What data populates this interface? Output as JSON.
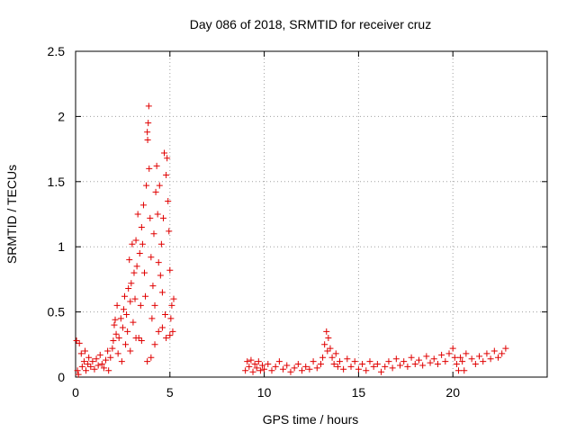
{
  "chart_data": {
    "type": "scatter",
    "title": "Day 086 of 2018, SRMTID for receiver cruz",
    "xlabel": "GPS time / hours",
    "ylabel": "SRMTID / TECUs",
    "xlim": [
      0,
      25
    ],
    "ylim": [
      0,
      2.5
    ],
    "xticks": [
      0,
      5,
      10,
      15,
      20
    ],
    "xtick_labels": [
      "0",
      "5",
      "10",
      "15",
      "20"
    ],
    "yticks": [
      0,
      0.5,
      1,
      1.5,
      2,
      2.5
    ],
    "ytick_labels": [
      "0",
      "0.5",
      "1",
      "1.5",
      "2",
      "2.5"
    ],
    "grid": true,
    "marker": "plus",
    "series": [
      {
        "name": "SRMTID",
        "color": "#e00000",
        "points": [
          [
            0.05,
            0.28
          ],
          [
            0.1,
            0.05
          ],
          [
            0.15,
            0.02
          ],
          [
            0.2,
            0.26
          ],
          [
            0.3,
            0.18
          ],
          [
            0.35,
            0.08
          ],
          [
            0.45,
            0.12
          ],
          [
            0.5,
            0.2
          ],
          [
            0.55,
            0.05
          ],
          [
            0.65,
            0.1
          ],
          [
            0.7,
            0.15
          ],
          [
            0.8,
            0.08
          ],
          [
            0.9,
            0.12
          ],
          [
            1.0,
            0.06
          ],
          [
            1.1,
            0.14
          ],
          [
            1.2,
            0.09
          ],
          [
            1.3,
            0.17
          ],
          [
            1.4,
            0.1
          ],
          [
            1.5,
            0.07
          ],
          [
            1.6,
            0.13
          ],
          [
            1.7,
            0.2
          ],
          [
            1.75,
            0.05
          ],
          [
            1.85,
            0.15
          ],
          [
            1.95,
            0.22
          ],
          [
            2.0,
            0.28
          ],
          [
            2.05,
            0.4
          ],
          [
            2.1,
            0.44
          ],
          [
            2.15,
            0.33
          ],
          [
            2.2,
            0.55
          ],
          [
            2.25,
            0.18
          ],
          [
            2.3,
            0.3
          ],
          [
            2.4,
            0.45
          ],
          [
            2.45,
            0.12
          ],
          [
            2.5,
            0.38
          ],
          [
            2.55,
            0.52
          ],
          [
            2.6,
            0.62
          ],
          [
            2.65,
            0.25
          ],
          [
            2.7,
            0.48
          ],
          [
            2.75,
            0.35
          ],
          [
            2.8,
            0.68
          ],
          [
            2.85,
            0.9
          ],
          [
            2.9,
            0.58
          ],
          [
            2.95,
            0.72
          ],
          [
            3.0,
            1.02
          ],
          [
            3.05,
            0.42
          ],
          [
            3.1,
            0.8
          ],
          [
            3.15,
            0.6
          ],
          [
            3.2,
            1.05
          ],
          [
            3.25,
            0.85
          ],
          [
            3.3,
            1.25
          ],
          [
            3.35,
            0.3
          ],
          [
            3.4,
            0.95
          ],
          [
            3.45,
            0.55
          ],
          [
            3.5,
            1.15
          ],
          [
            3.55,
            1.02
          ],
          [
            3.6,
            1.32
          ],
          [
            3.65,
            0.8
          ],
          [
            3.7,
            0.62
          ],
          [
            3.75,
            1.47
          ],
          [
            3.8,
            1.88
          ],
          [
            3.82,
            1.82
          ],
          [
            3.85,
            1.95
          ],
          [
            3.88,
            2.08
          ],
          [
            3.9,
            1.6
          ],
          [
            3.95,
            1.22
          ],
          [
            4.0,
            0.92
          ],
          [
            4.05,
            0.45
          ],
          [
            4.1,
            0.7
          ],
          [
            4.15,
            1.1
          ],
          [
            4.2,
            0.55
          ],
          [
            4.25,
            1.42
          ],
          [
            4.3,
            1.62
          ],
          [
            4.35,
            1.25
          ],
          [
            4.4,
            0.88
          ],
          [
            4.45,
            1.47
          ],
          [
            4.5,
            0.78
          ],
          [
            4.55,
            1.02
          ],
          [
            4.6,
            0.65
          ],
          [
            4.65,
            1.22
          ],
          [
            4.7,
            1.72
          ],
          [
            4.75,
            0.48
          ],
          [
            4.8,
            1.55
          ],
          [
            4.85,
            1.68
          ],
          [
            4.9,
            1.35
          ],
          [
            4.95,
            1.12
          ],
          [
            5.0,
            0.82
          ],
          [
            5.05,
            0.45
          ],
          [
            5.1,
            0.55
          ],
          [
            5.15,
            0.35
          ],
          [
            5.2,
            0.6
          ],
          [
            3.2,
            0.3
          ],
          [
            3.5,
            0.28
          ],
          [
            3.8,
            0.12
          ],
          [
            4.0,
            0.15
          ],
          [
            4.2,
            0.25
          ],
          [
            4.4,
            0.35
          ],
          [
            4.6,
            0.38
          ],
          [
            4.8,
            0.3
          ],
          [
            5.0,
            0.32
          ],
          [
            2.9,
            0.2
          ],
          [
            9.0,
            0.05
          ],
          [
            9.1,
            0.12
          ],
          [
            9.2,
            0.08
          ],
          [
            9.3,
            0.13
          ],
          [
            9.4,
            0.04
          ],
          [
            9.5,
            0.1
          ],
          [
            9.6,
            0.07
          ],
          [
            9.7,
            0.12
          ],
          [
            9.8,
            0.05
          ],
          [
            9.9,
            0.09
          ],
          [
            10.0,
            0.06
          ],
          [
            10.2,
            0.1
          ],
          [
            10.4,
            0.05
          ],
          [
            10.6,
            0.08
          ],
          [
            10.8,
            0.12
          ],
          [
            11.0,
            0.06
          ],
          [
            11.2,
            0.09
          ],
          [
            11.4,
            0.04
          ],
          [
            11.6,
            0.07
          ],
          [
            11.8,
            0.1
          ],
          [
            12.0,
            0.05
          ],
          [
            12.2,
            0.08
          ],
          [
            12.4,
            0.06
          ],
          [
            12.6,
            0.12
          ],
          [
            12.8,
            0.07
          ],
          [
            13.0,
            0.1
          ],
          [
            13.1,
            0.15
          ],
          [
            13.2,
            0.25
          ],
          [
            13.3,
            0.35
          ],
          [
            13.35,
            0.2
          ],
          [
            13.4,
            0.3
          ],
          [
            13.5,
            0.22
          ],
          [
            13.6,
            0.15
          ],
          [
            13.7,
            0.1
          ],
          [
            13.8,
            0.18
          ],
          [
            13.9,
            0.08
          ],
          [
            14.0,
            0.12
          ],
          [
            14.2,
            0.06
          ],
          [
            14.4,
            0.14
          ],
          [
            14.6,
            0.08
          ],
          [
            14.8,
            0.12
          ],
          [
            15.0,
            0.06
          ],
          [
            15.2,
            0.1
          ],
          [
            15.4,
            0.05
          ],
          [
            15.6,
            0.12
          ],
          [
            15.8,
            0.08
          ],
          [
            16.0,
            0.1
          ],
          [
            16.2,
            0.04
          ],
          [
            16.4,
            0.08
          ],
          [
            16.6,
            0.12
          ],
          [
            16.8,
            0.07
          ],
          [
            17.0,
            0.14
          ],
          [
            17.2,
            0.09
          ],
          [
            17.4,
            0.12
          ],
          [
            17.6,
            0.08
          ],
          [
            17.8,
            0.15
          ],
          [
            18.0,
            0.1
          ],
          [
            18.2,
            0.13
          ],
          [
            18.4,
            0.09
          ],
          [
            18.6,
            0.16
          ],
          [
            18.8,
            0.11
          ],
          [
            19.0,
            0.14
          ],
          [
            19.2,
            0.1
          ],
          [
            19.4,
            0.17
          ],
          [
            19.6,
            0.12
          ],
          [
            19.8,
            0.18
          ],
          [
            20.0,
            0.22
          ],
          [
            20.1,
            0.15
          ],
          [
            20.2,
            0.1
          ],
          [
            20.3,
            0.05
          ],
          [
            20.4,
            0.15
          ],
          [
            20.5,
            0.12
          ],
          [
            20.6,
            0.05
          ],
          [
            20.7,
            0.18
          ],
          [
            21.0,
            0.14
          ],
          [
            21.2,
            0.1
          ],
          [
            21.4,
            0.16
          ],
          [
            21.6,
            0.12
          ],
          [
            21.8,
            0.18
          ],
          [
            22.0,
            0.14
          ],
          [
            22.2,
            0.2
          ],
          [
            22.4,
            0.15
          ],
          [
            22.6,
            0.18
          ],
          [
            22.8,
            0.22
          ]
        ]
      }
    ]
  }
}
